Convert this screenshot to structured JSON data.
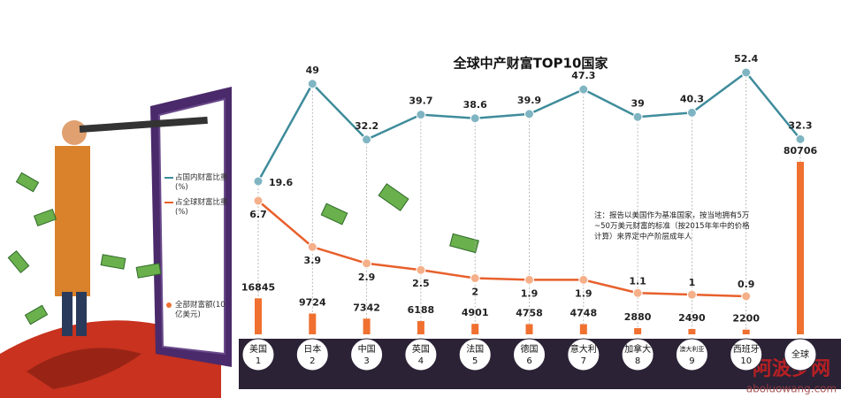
{
  "chart_data": {
    "type": "line",
    "title": "全球中产财富TOP10国家",
    "categories": [
      "美国",
      "日本",
      "中国",
      "英国",
      "法国",
      "德国",
      "意大利",
      "加拿大",
      "澳大利亚",
      "西班牙",
      "全球"
    ],
    "ranks": [
      "1",
      "2",
      "3",
      "4",
      "5",
      "6",
      "7",
      "8",
      "9",
      "10",
      null
    ],
    "series": [
      {
        "name": "占国内财富比重(%)",
        "color": "#3f8c9b",
        "values": [
          19.6,
          49,
          32.2,
          39.7,
          38.6,
          39.9,
          47.3,
          39,
          40.3,
          52.4,
          32.3
        ]
      },
      {
        "name": "占全球财富比重(%)",
        "color": "#e8602c",
        "values": [
          6.7,
          3.9,
          2.9,
          2.5,
          2,
          1.9,
          1.9,
          1.1,
          1,
          0.9,
          null
        ]
      },
      {
        "name": "全部财富额(10亿美元)",
        "color": "#f07030",
        "type": "bar",
        "values": [
          16845,
          9724,
          7342,
          6188,
          4901,
          4758,
          4748,
          2880,
          2490,
          2200,
          80706
        ]
      }
    ],
    "note": "注：报告以美国作为基准国家，按当地拥有5万~50万美元财富的标准（按2015年年中的价格计算）来界定中产阶层成年人"
  },
  "watermark": [
    "阿波罗网",
    "aboluowang.com"
  ]
}
